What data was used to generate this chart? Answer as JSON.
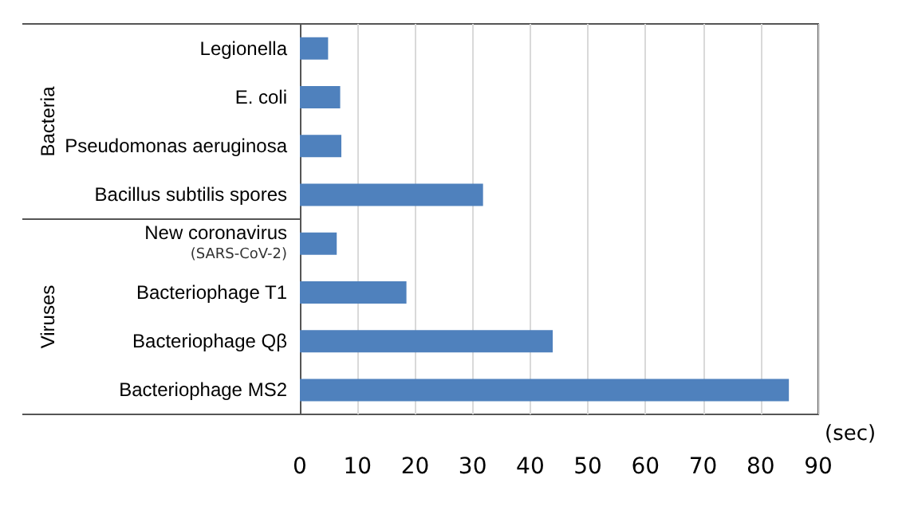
{
  "chart_data": {
    "type": "bar",
    "orientation": "horizontal",
    "xlabel": "(sec)",
    "categories": [
      "Legionella",
      "E. coli",
      "Pseudomonas aeruginosa",
      "Bacillus subtilis spores",
      "New coronavirus\n(SARS-CoV-2)",
      "Bacteriophage T1",
      "Bacteriophage Qβ",
      "Bacteriophage MS2"
    ],
    "values": [
      4.9,
      7.0,
      7.2,
      31.8,
      6.4,
      18.5,
      43.9,
      84.9
    ],
    "color": "#4f81bd",
    "xlim": [
      0,
      90
    ],
    "xticks": [
      0,
      10,
      20,
      30,
      40,
      50,
      60,
      70,
      80,
      90
    ],
    "grid": "x",
    "annotations": [
      "Bacteria",
      "Viruses"
    ]
  }
}
